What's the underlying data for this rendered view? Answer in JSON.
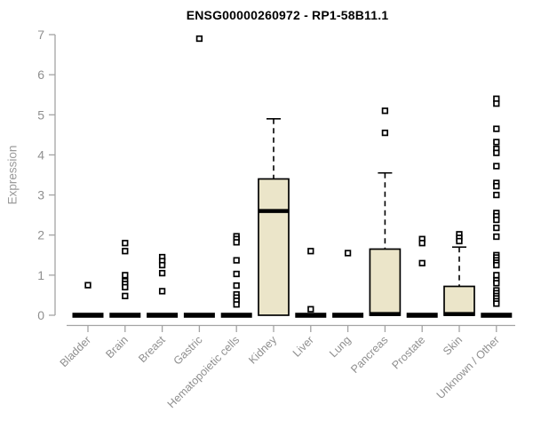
{
  "chart_data": {
    "type": "boxplot",
    "title": "ENSG00000260972 - RP1-58B11.1",
    "ylabel": "Expression",
    "xlabel": "",
    "ylim": [
      0,
      7
    ],
    "yticks": [
      0,
      1,
      2,
      3,
      4,
      5,
      6,
      7
    ],
    "grid": false,
    "legend": null,
    "colors": {
      "box_fill": "#EBE5C9",
      "box_stroke": "#000000",
      "axis": "#A3A3A3",
      "tick_label": "#8F8F8F",
      "title": "#000000"
    },
    "categories": [
      "Bladder",
      "Brain",
      "Breast",
      "Gastric",
      "Hematopoietic cells",
      "Kidney",
      "Liver",
      "Lung",
      "Pancreas",
      "Prostate",
      "Skin",
      "Unknown / Other"
    ],
    "series": [
      {
        "category": "Bladder",
        "q1": 0,
        "median": 0,
        "q3": 0,
        "whisker_low": 0,
        "whisker_high": 0,
        "outliers": [
          0.75
        ]
      },
      {
        "category": "Brain",
        "q1": 0,
        "median": 0,
        "q3": 0,
        "whisker_low": 0,
        "whisker_high": 0,
        "outliers": [
          1.8,
          1.6,
          1.0,
          0.85,
          0.78,
          0.7,
          0.48
        ]
      },
      {
        "category": "Breast",
        "q1": 0,
        "median": 0,
        "q3": 0,
        "whisker_low": 0,
        "whisker_high": 0,
        "outliers": [
          1.45,
          1.35,
          1.25,
          1.05,
          0.6
        ]
      },
      {
        "category": "Gastric",
        "q1": 0,
        "median": 0,
        "q3": 0,
        "whisker_low": 0,
        "whisker_high": 0,
        "outliers": [
          6.9
        ]
      },
      {
        "category": "Hematopoietic cells",
        "q1": 0,
        "median": 0,
        "q3": 0,
        "whisker_low": 0,
        "whisker_high": 0,
        "outliers": [
          1.97,
          1.9,
          1.82,
          1.37,
          1.03,
          0.74,
          0.52,
          0.44,
          0.36,
          0.27
        ]
      },
      {
        "category": "Kidney",
        "q1": 0,
        "median": 2.6,
        "q3": 3.4,
        "whisker_low": 0,
        "whisker_high": 4.9,
        "outliers": []
      },
      {
        "category": "Liver",
        "q1": 0,
        "median": 0,
        "q3": 0,
        "whisker_low": 0,
        "whisker_high": 0,
        "outliers": [
          1.6,
          0.15
        ]
      },
      {
        "category": "Lung",
        "q1": 0,
        "median": 0,
        "q3": 0,
        "whisker_low": 0,
        "whisker_high": 0,
        "outliers": [
          1.55
        ]
      },
      {
        "category": "Pancreas",
        "q1": 0,
        "median": 0.03,
        "q3": 1.65,
        "whisker_low": 0,
        "whisker_high": 3.55,
        "outliers": [
          5.1,
          4.55
        ]
      },
      {
        "category": "Prostate",
        "q1": 0,
        "median": 0,
        "q3": 0,
        "whisker_low": 0,
        "whisker_high": 0,
        "outliers": [
          1.9,
          1.8,
          1.3
        ]
      },
      {
        "category": "Skin",
        "q1": 0,
        "median": 0.03,
        "q3": 0.72,
        "whisker_low": 0,
        "whisker_high": 1.7,
        "outliers": [
          2.02,
          1.93,
          1.85
        ]
      },
      {
        "category": "Unknown / Other",
        "q1": 0,
        "median": 0,
        "q3": 0,
        "whisker_low": 0,
        "whisker_high": 0,
        "outliers": [
          5.4,
          5.28,
          4.65,
          4.32,
          4.15,
          4.05,
          3.72,
          3.3,
          3.22,
          3.0,
          2.55,
          2.47,
          2.38,
          2.18,
          1.96,
          1.5,
          1.44,
          1.37,
          1.31,
          1.25,
          1.0,
          0.87,
          0.8,
          0.62,
          0.55,
          0.48,
          0.42,
          0.35,
          0.29
        ]
      }
    ]
  }
}
